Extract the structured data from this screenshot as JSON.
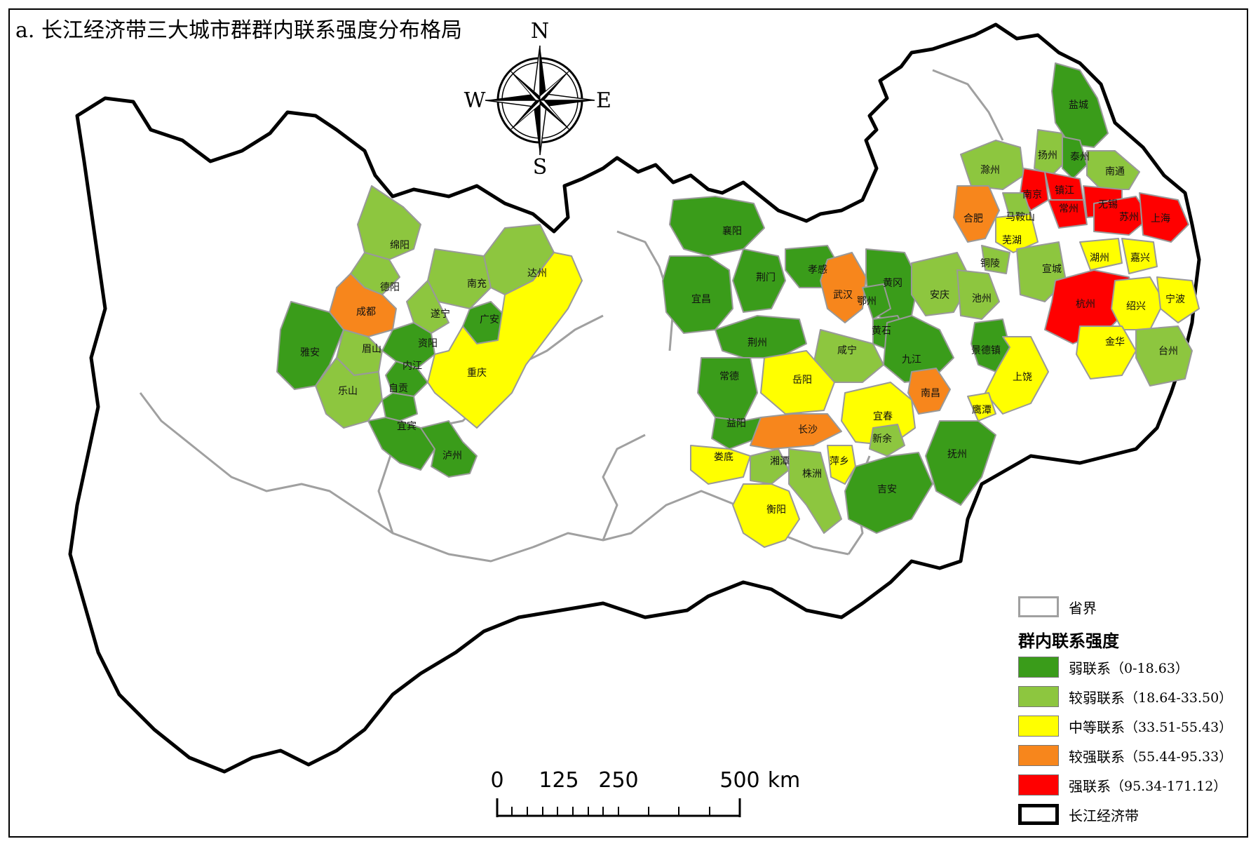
{
  "title": "a. 长江经济带三大城市群群内联系强度分布格局",
  "compass": {
    "n": "N",
    "s": "S",
    "e": "E",
    "w": "W",
    "icon": "compass-rose-icon"
  },
  "scale_bar": {
    "ticks": [
      "0",
      "125",
      "250",
      "500"
    ],
    "unit": "km"
  },
  "legend": {
    "province_label": "省界",
    "title": "群内联系强度",
    "classes": [
      {
        "name": "弱联系",
        "range": "（0-18.63）",
        "color": "#3a9c1a"
      },
      {
        "name": "较弱联系",
        "range": "（18.64-33.50）",
        "color": "#8dc63f"
      },
      {
        "name": "中等联系",
        "range": "（33.51-55.43）",
        "color": "#ffff00"
      },
      {
        "name": "较强联系",
        "range": "（55.44-95.33）",
        "color": "#f7861c"
      },
      {
        "name": "强联系",
        "range": "（95.34-171.12）",
        "color": "#ff0000"
      }
    ],
    "belt_label": "长江经济带"
  },
  "cities": [
    {
      "name": "绵阳",
      "level": 1
    },
    {
      "name": "德阳",
      "level": 1
    },
    {
      "name": "南充",
      "level": 1
    },
    {
      "name": "达州",
      "level": 1
    },
    {
      "name": "成都",
      "level": 3
    },
    {
      "name": "遂宁",
      "level": 1
    },
    {
      "name": "广安",
      "level": 0
    },
    {
      "name": "雅安",
      "level": 0
    },
    {
      "name": "眉山",
      "level": 1
    },
    {
      "name": "资阳",
      "level": 0
    },
    {
      "name": "内江",
      "level": 0
    },
    {
      "name": "乐山",
      "level": 1
    },
    {
      "name": "自贡",
      "level": 0
    },
    {
      "name": "宜宾",
      "level": 0
    },
    {
      "name": "泸州",
      "level": 0
    },
    {
      "name": "重庆",
      "level": 2
    },
    {
      "name": "襄阳",
      "level": 0
    },
    {
      "name": "宜昌",
      "level": 0
    },
    {
      "name": "荆门",
      "level": 0
    },
    {
      "name": "孝感",
      "level": 0
    },
    {
      "name": "武汉",
      "level": 3
    },
    {
      "name": "黄冈",
      "level": 0
    },
    {
      "name": "鄂州",
      "level": 0
    },
    {
      "name": "黄石",
      "level": 0
    },
    {
      "name": "荆州",
      "level": 0
    },
    {
      "name": "咸宁",
      "level": 1
    },
    {
      "name": "常德",
      "level": 0
    },
    {
      "name": "岳阳",
      "level": 2
    },
    {
      "name": "益阳",
      "level": 0
    },
    {
      "name": "长沙",
      "level": 3
    },
    {
      "name": "娄底",
      "level": 2
    },
    {
      "name": "湘潭",
      "level": 1
    },
    {
      "name": "株洲",
      "level": 1
    },
    {
      "name": "衡阳",
      "level": 2
    },
    {
      "name": "萍乡",
      "level": 2
    },
    {
      "name": "宜春",
      "level": 2
    },
    {
      "name": "新余",
      "level": 1
    },
    {
      "name": "吉安",
      "level": 0
    },
    {
      "name": "九江",
      "level": 0
    },
    {
      "name": "南昌",
      "level": 3
    },
    {
      "name": "景德镇",
      "level": 0
    },
    {
      "name": "上饶",
      "level": 2
    },
    {
      "name": "鹰潭",
      "level": 2
    },
    {
      "name": "抚州",
      "level": 0
    },
    {
      "name": "盐城",
      "level": 0
    },
    {
      "name": "扬州",
      "level": 1
    },
    {
      "name": "泰州",
      "level": 0
    },
    {
      "name": "南通",
      "level": 1
    },
    {
      "name": "滁州",
      "level": 1
    },
    {
      "name": "合肥",
      "level": 3
    },
    {
      "name": "南京",
      "level": 4
    },
    {
      "name": "镇江",
      "level": 4
    },
    {
      "name": "常州",
      "level": 4
    },
    {
      "name": "无锡",
      "level": 4
    },
    {
      "name": "苏州",
      "level": 4
    },
    {
      "name": "上海",
      "level": 4
    },
    {
      "name": "马鞍山",
      "level": 1
    },
    {
      "name": "芜湖",
      "level": 2
    },
    {
      "name": "铜陵",
      "level": 1
    },
    {
      "name": "安庆",
      "level": 1
    },
    {
      "name": "池州",
      "level": 1
    },
    {
      "name": "宣城",
      "level": 1
    },
    {
      "name": "湖州",
      "level": 2
    },
    {
      "name": "嘉兴",
      "level": 2
    },
    {
      "name": "杭州",
      "level": 4
    },
    {
      "name": "绍兴",
      "level": 2
    },
    {
      "name": "宁波",
      "level": 2
    },
    {
      "name": "金华",
      "level": 2
    },
    {
      "name": "台州",
      "level": 1
    }
  ]
}
